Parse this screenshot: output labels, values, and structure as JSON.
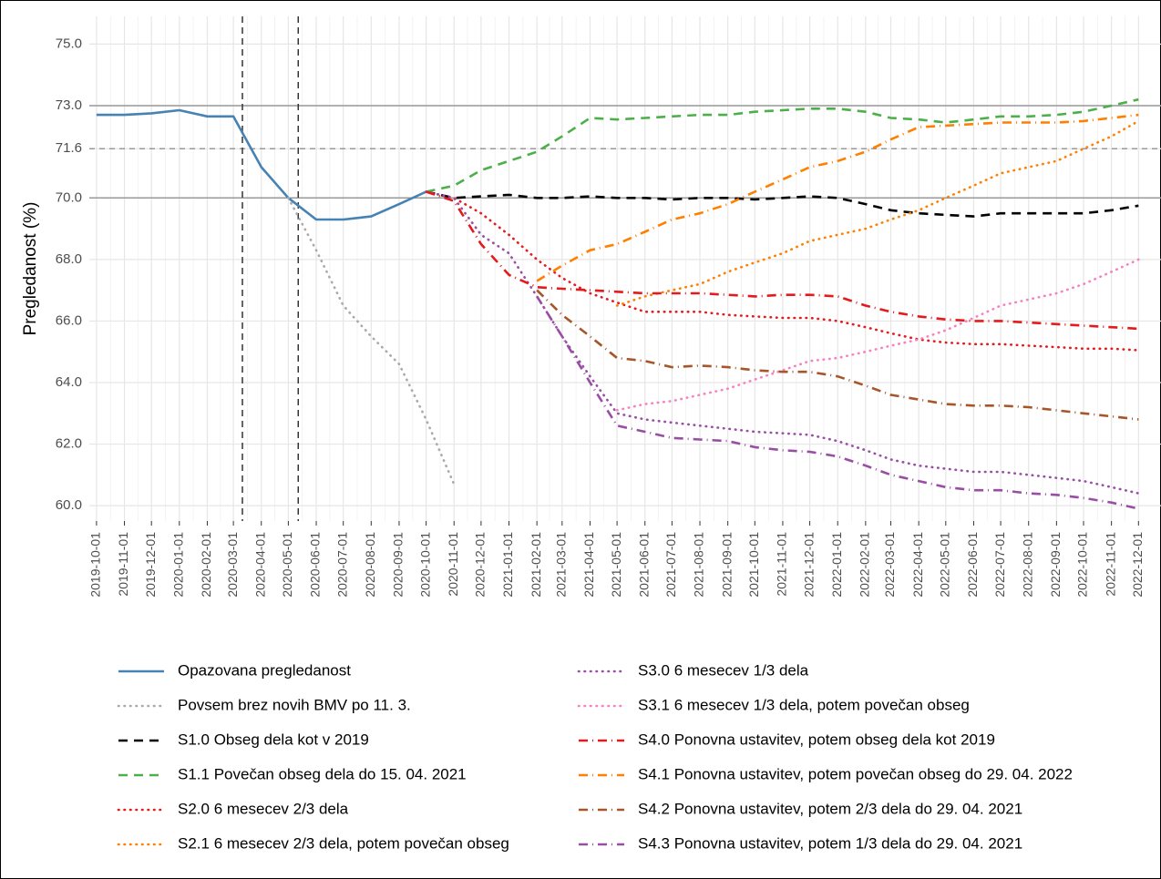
{
  "chart_data": {
    "type": "line",
    "y_label": "Pregledanost (%)",
    "x": [
      "2019-10-01",
      "2019-11-01",
      "2019-12-01",
      "2020-01-01",
      "2020-02-01",
      "2020-03-01",
      "2020-04-01",
      "2020-05-01",
      "2020-06-01",
      "2020-07-01",
      "2020-08-01",
      "2020-09-01",
      "2020-10-01",
      "2020-11-01",
      "2020-12-01",
      "2021-01-01",
      "2021-02-01",
      "2021-03-01",
      "2021-04-01",
      "2021-05-01",
      "2021-06-01",
      "2021-07-01",
      "2021-08-01",
      "2021-09-01",
      "2021-10-01",
      "2021-11-01",
      "2021-12-01",
      "2022-01-01",
      "2022-02-01",
      "2022-03-01",
      "2022-04-01",
      "2022-05-01",
      "2022-06-01",
      "2022-07-01",
      "2022-08-01",
      "2022-09-01",
      "2022-10-01",
      "2022-11-01",
      "2022-12-01"
    ],
    "xlim": [
      "2019-09-23",
      "2022-12-26"
    ],
    "ylim": [
      59.5,
      75.9
    ],
    "yticks": [
      {
        "value": 60,
        "label": "60.0"
      },
      {
        "value": 62,
        "label": "62.0"
      },
      {
        "value": 64,
        "label": "64.0"
      },
      {
        "value": 66,
        "label": "66.0"
      },
      {
        "value": 68,
        "label": "68.0"
      },
      {
        "value": 70,
        "label": "70.0"
      },
      71.6,
      {
        "value": 73,
        "label": "73.0"
      },
      {
        "value": 75,
        "label": "75.0"
      }
    ],
    "grid": true,
    "legend": "bottom",
    "hlines": [
      {
        "value": 73,
        "style": "solid"
      },
      {
        "value": 71.6,
        "style": "dashed"
      },
      {
        "value": 70,
        "style": "solid"
      }
    ],
    "vlines": [
      "2020-03-11",
      "2020-05-12"
    ],
    "series": [
      {
        "name": "Opazovana pregledanost",
        "color": "#4682b4",
        "dash": "solid",
        "values": [
          72.7,
          72.7,
          72.75,
          72.85,
          72.65,
          72.65,
          71.0,
          70.0,
          69.3,
          69.3,
          69.4,
          69.8,
          70.2,
          null,
          null,
          null,
          null,
          null,
          null,
          null,
          null,
          null,
          null,
          null,
          null,
          null,
          null,
          null,
          null,
          null,
          null,
          null,
          null,
          null,
          null,
          null,
          null,
          null,
          null
        ]
      },
      {
        "name": "Povsem brez novih BMV po 11. 3.",
        "color": "#aaaaaa",
        "dash": "dotted",
        "values": [
          null,
          null,
          null,
          null,
          null,
          null,
          null,
          70.0,
          68.3,
          66.5,
          65.5,
          64.6,
          62.8,
          60.7,
          null,
          null,
          null,
          null,
          null,
          null,
          null,
          null,
          null,
          null,
          null,
          null,
          null,
          null,
          null,
          null,
          null,
          null,
          null,
          null,
          null,
          null,
          null,
          null,
          null
        ]
      },
      {
        "name": "S1.0 Obseg dela kot v 2019",
        "color": "#000000",
        "dash": "dashed",
        "values": [
          null,
          null,
          null,
          null,
          null,
          null,
          null,
          null,
          null,
          null,
          null,
          null,
          70.2,
          70.0,
          70.05,
          70.1,
          70.0,
          70.0,
          70.05,
          70.0,
          70.0,
          69.95,
          70.0,
          70.0,
          69.95,
          70.0,
          70.05,
          70.0,
          69.8,
          69.6,
          69.5,
          69.45,
          69.4,
          69.5,
          69.5,
          69.5,
          69.5,
          69.6,
          69.75
        ]
      },
      {
        "name": "S1.1 Povečan obseg dela do 15. 04. 2021",
        "color": "#4daf4a",
        "dash": "dashed",
        "values": [
          null,
          null,
          null,
          null,
          null,
          null,
          null,
          null,
          null,
          null,
          null,
          null,
          70.2,
          70.4,
          70.9,
          71.2,
          71.5,
          72.0,
          72.6,
          72.55,
          72.6,
          72.65,
          72.7,
          72.7,
          72.8,
          72.85,
          72.9,
          72.9,
          72.8,
          72.6,
          72.55,
          72.45,
          72.55,
          72.65,
          72.65,
          72.7,
          72.8,
          73.0,
          73.2
        ]
      },
      {
        "name": "S2.0 6 mesecev 2/3 dela",
        "color": "#e41a1c",
        "dash": "dotted",
        "values": [
          null,
          null,
          null,
          null,
          null,
          null,
          null,
          null,
          null,
          null,
          null,
          null,
          70.2,
          70.0,
          69.5,
          68.8,
          68.0,
          67.4,
          66.9,
          66.6,
          66.3,
          66.3,
          66.3,
          66.2,
          66.15,
          66.1,
          66.1,
          66.0,
          65.8,
          65.6,
          65.4,
          65.3,
          65.25,
          65.25,
          65.2,
          65.15,
          65.1,
          65.1,
          65.05
        ]
      },
      {
        "name": "S2.1 6 mesecev 2/3 dela, potem povečan obseg",
        "color": "#ff7f00",
        "dash": "dotted",
        "values": [
          null,
          null,
          null,
          null,
          null,
          null,
          null,
          null,
          null,
          null,
          null,
          null,
          null,
          null,
          null,
          null,
          null,
          null,
          null,
          66.5,
          66.8,
          67.0,
          67.2,
          67.6,
          67.9,
          68.2,
          68.6,
          68.8,
          69.0,
          69.3,
          69.6,
          70.0,
          70.4,
          70.8,
          71.0,
          71.2,
          71.6,
          72.0,
          72.5
        ]
      },
      {
        "name": "S3.0 6 mesecev 1/3 dela",
        "color": "#984ea3",
        "dash": "dotted",
        "values": [
          null,
          null,
          null,
          null,
          null,
          null,
          null,
          null,
          null,
          null,
          null,
          null,
          70.2,
          70.0,
          68.8,
          68.2,
          66.8,
          65.5,
          64.2,
          63.0,
          62.8,
          62.7,
          62.6,
          62.5,
          62.4,
          62.35,
          62.3,
          62.1,
          61.8,
          61.5,
          61.3,
          61.2,
          61.1,
          61.1,
          61.0,
          60.9,
          60.8,
          60.6,
          60.4
        ]
      },
      {
        "name": "S3.1 6 mesecev 1/3 dela, potem povečan obseg",
        "color": "#f781bf",
        "dash": "dotted",
        "values": [
          null,
          null,
          null,
          null,
          null,
          null,
          null,
          null,
          null,
          null,
          null,
          null,
          null,
          null,
          null,
          null,
          null,
          null,
          null,
          63.1,
          63.3,
          63.4,
          63.6,
          63.8,
          64.1,
          64.4,
          64.7,
          64.8,
          65.0,
          65.2,
          65.4,
          65.7,
          66.1,
          66.5,
          66.7,
          66.9,
          67.2,
          67.6,
          68.0
        ]
      },
      {
        "name": "S4.0 Ponovna ustavitev, potem obseg dela kot 2019",
        "color": "#e41a1c",
        "dash": "dashdot",
        "values": [
          null,
          null,
          null,
          null,
          null,
          null,
          null,
          null,
          null,
          null,
          null,
          null,
          70.2,
          69.9,
          68.5,
          67.5,
          67.1,
          67.05,
          67.0,
          66.95,
          66.9,
          66.9,
          66.9,
          66.85,
          66.8,
          66.85,
          66.85,
          66.8,
          66.5,
          66.3,
          66.15,
          66.05,
          66.0,
          66.0,
          65.95,
          65.9,
          65.85,
          65.8,
          65.75
        ]
      },
      {
        "name": "S4.1 Ponovna ustavitev, potem povečan obseg do 29. 04. 2022",
        "color": "#ff7f00",
        "dash": "dashdot",
        "values": [
          null,
          null,
          null,
          null,
          null,
          null,
          null,
          null,
          null,
          null,
          null,
          null,
          null,
          null,
          null,
          null,
          67.3,
          67.8,
          68.3,
          68.5,
          68.9,
          69.3,
          69.5,
          69.8,
          70.2,
          70.6,
          71.0,
          71.2,
          71.5,
          71.9,
          72.3,
          72.35,
          72.4,
          72.45,
          72.45,
          72.45,
          72.5,
          72.6,
          72.7
        ]
      },
      {
        "name": "S4.2 Ponovna ustavitev, potem 2/3 dela do 29. 04. 2021",
        "color": "#a65628",
        "dash": "dashdot",
        "values": [
          null,
          null,
          null,
          null,
          null,
          null,
          null,
          null,
          null,
          null,
          null,
          null,
          null,
          null,
          null,
          null,
          67.0,
          66.2,
          65.5,
          64.8,
          64.7,
          64.5,
          64.55,
          64.5,
          64.4,
          64.35,
          64.35,
          64.2,
          63.9,
          63.6,
          63.45,
          63.3,
          63.25,
          63.25,
          63.2,
          63.1,
          63.0,
          62.9,
          62.8
        ]
      },
      {
        "name": "S4.3 Ponovna ustavitev, potem 1/3 dela do 29. 04. 2021",
        "color": "#984ea3",
        "dash": "dashdot",
        "values": [
          null,
          null,
          null,
          null,
          null,
          null,
          null,
          null,
          null,
          null,
          null,
          null,
          null,
          null,
          null,
          null,
          66.8,
          65.5,
          64.0,
          62.6,
          62.4,
          62.2,
          62.15,
          62.1,
          61.9,
          61.8,
          61.75,
          61.6,
          61.3,
          61.0,
          60.8,
          60.6,
          60.5,
          60.5,
          60.4,
          60.35,
          60.25,
          60.1,
          59.9
        ]
      }
    ]
  }
}
